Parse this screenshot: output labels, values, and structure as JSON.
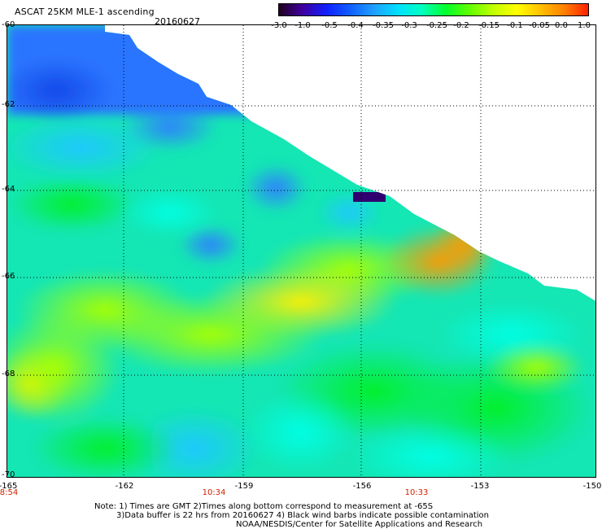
{
  "header": {
    "title": "ASCAT 25KM MLE-1 ascending",
    "date": "20160627"
  },
  "colorbar": {
    "labels": [
      "-3.0",
      "-1.0",
      "-0.5",
      "-0.4",
      "-0.35",
      "-0.3",
      "-0.25",
      "-0.2",
      "-0.15",
      "-0.1",
      "-0.05",
      "0.0",
      "1.0"
    ],
    "colors": [
      "#200020",
      "#4000a0",
      "#1020ff",
      "#1060ff",
      "#20a0ff",
      "#00e0ff",
      "#00ffc0",
      "#00ff30",
      "#60ff00",
      "#c0ff00",
      "#ffff00",
      "#ffc000",
      "#ff8000",
      "#ff2000"
    ]
  },
  "map": {
    "lat_labels": [
      "-60",
      "-62",
      "-64",
      "-66",
      "-68",
      "-70"
    ],
    "lon_labels": [
      "-165",
      "-162",
      "-159",
      "-156",
      "-153",
      "-150"
    ],
    "times": [
      {
        "lon": -165,
        "text": "8:54"
      },
      {
        "lon": -159,
        "text": "10:34"
      },
      {
        "lon": -154,
        "text": "10:33"
      }
    ]
  },
  "notes": {
    "line1": "Note: 1) Times are GMT 2)Times along bottom correspond to measurement at -65S",
    "line2": "3)Data buffer is 22 hrs from 20160627 4) Black wind barbs indicate possible contamination",
    "line3": "NOAA/NESDIS/Center for Satellite Applications and Research"
  }
}
